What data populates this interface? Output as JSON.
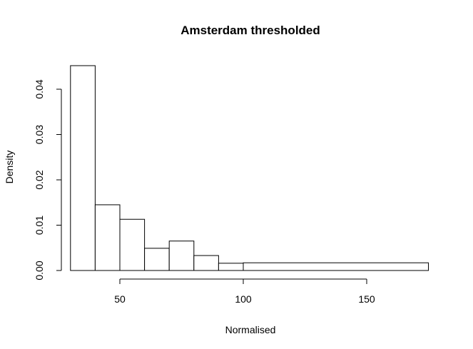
{
  "chart_data": {
    "type": "bar",
    "title": "Amsterdam thresholded",
    "xlabel": "Normalised",
    "ylabel": "Density",
    "bins": [
      {
        "start": 30,
        "end": 40,
        "density": 0.0452
      },
      {
        "start": 40,
        "end": 50,
        "density": 0.0145
      },
      {
        "start": 50,
        "end": 60,
        "density": 0.0113
      },
      {
        "start": 60,
        "end": 70,
        "density": 0.0049
      },
      {
        "start": 70,
        "end": 80,
        "density": 0.0065
      },
      {
        "start": 80,
        "end": 90,
        "density": 0.0033
      },
      {
        "start": 90,
        "end": 100,
        "density": 0.0016
      },
      {
        "start": 100,
        "end": 175,
        "density": 0.0017
      }
    ],
    "xticks": [
      {
        "value": 50,
        "label": "50"
      },
      {
        "value": 100,
        "label": "100"
      },
      {
        "value": 150,
        "label": "150"
      }
    ],
    "yticks": [
      {
        "value": 0,
        "label": "0.00"
      },
      {
        "value": 0.01,
        "label": "0.01"
      },
      {
        "value": 0.02,
        "label": "0.02"
      },
      {
        "value": 0.03,
        "label": "0.03"
      },
      {
        "value": 0.04,
        "label": "0.04"
      }
    ],
    "grid": false
  }
}
